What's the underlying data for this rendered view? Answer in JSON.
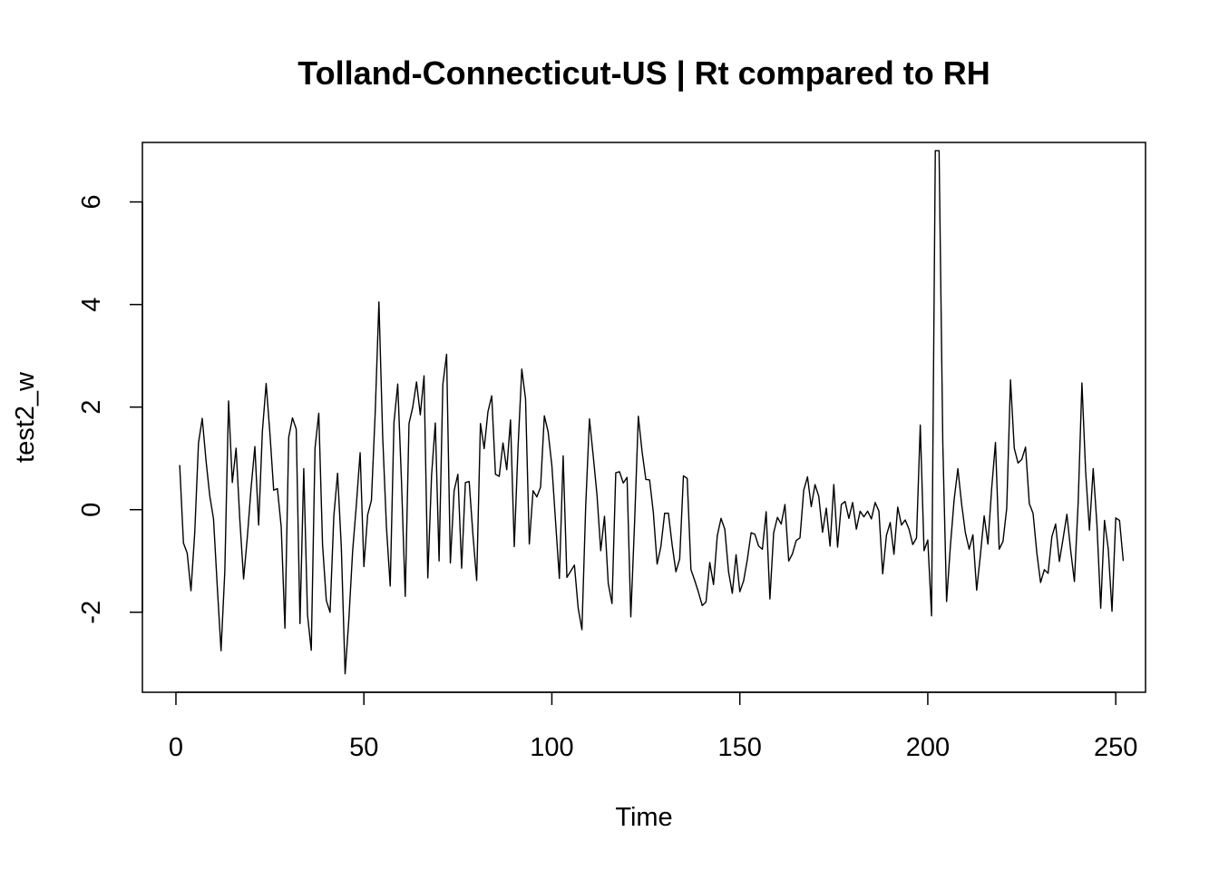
{
  "chart_data": {
    "type": "line",
    "title": "Tolland-Connecticut-US | Rt compared to RH",
    "xlabel": "Time",
    "ylabel": "test2_w",
    "xlim": [
      -8.92,
      257.92
    ],
    "ylim": [
      -3.56,
      7.16
    ],
    "x_ticks": [
      0,
      50,
      100,
      150,
      200,
      250
    ],
    "y_ticks": [
      -2,
      0,
      2,
      4,
      6
    ],
    "grid": false,
    "legend": "none",
    "line_color": "#000000",
    "series": [
      {
        "x_start": 1,
        "values": [
          0.87,
          -0.65,
          -0.85,
          -1.58,
          -0.45,
          1.3,
          1.78,
          0.96,
          0.27,
          -0.18,
          -1.5,
          -2.75,
          -1.21,
          2.12,
          0.53,
          1.2,
          -0.2,
          -1.35,
          -0.53,
          0.43,
          1.23,
          -0.3,
          1.53,
          2.46,
          1.49,
          0.38,
          0.41,
          -0.33,
          -2.31,
          1.41,
          1.79,
          1.57,
          -2.22,
          0.8,
          -2.05,
          -2.74,
          1.2,
          1.88,
          -0.68,
          -1.77,
          -2.0,
          -0.13,
          0.71,
          -0.74,
          -3.2,
          -2.14,
          -0.81,
          0.1,
          1.11,
          -1.11,
          -0.1,
          0.18,
          1.88,
          4.05,
          1.42,
          -0.34,
          -1.49,
          1.7,
          2.45,
          0.55,
          -1.69,
          1.68,
          2.0,
          2.49,
          1.85,
          2.61,
          -1.33,
          0.67,
          1.69,
          -1.0,
          2.44,
          3.03,
          -1.04,
          0.37,
          0.69,
          -1.14,
          0.53,
          0.55,
          -0.48,
          -1.38,
          1.68,
          1.19,
          1.91,
          2.22,
          0.69,
          0.65,
          1.3,
          0.78,
          1.75,
          -0.72,
          1.21,
          2.74,
          2.16,
          -0.67,
          0.37,
          0.25,
          0.44,
          1.83,
          1.52,
          0.86,
          -0.25,
          -1.34,
          1.05,
          -1.32,
          -1.2,
          -1.08,
          -1.92,
          -2.34,
          0.07,
          1.77,
          1.05,
          0.29,
          -0.8,
          -0.13,
          -1.44,
          -1.83,
          0.72,
          0.74,
          0.52,
          0.63,
          -2.09,
          -0.26,
          1.82,
          1.13,
          0.59,
          0.58,
          -0.06,
          -1.06,
          -0.72,
          -0.07,
          -0.07,
          -0.69,
          -1.21,
          -0.96,
          0.66,
          0.61,
          -1.17,
          -1.38,
          -1.61,
          -1.87,
          -1.8,
          -1.03,
          -1.46,
          -0.51,
          -0.17,
          -0.38,
          -1.21,
          -1.63,
          -0.88,
          -1.6,
          -1.39,
          -0.97,
          -0.45,
          -0.48,
          -0.71,
          -0.77,
          -0.04,
          -1.74,
          -0.45,
          -0.15,
          -0.28,
          0.1,
          -1.0,
          -0.86,
          -0.6,
          -0.55,
          0.38,
          0.64,
          0.06,
          0.49,
          0.26,
          -0.44,
          0.03,
          -0.71,
          0.49,
          -0.73,
          0.1,
          0.16,
          -0.17,
          0.14,
          -0.38,
          -0.03,
          -0.14,
          -0.03,
          -0.18,
          0.14,
          -0.03,
          -1.25,
          -0.5,
          -0.25,
          -0.87,
          0.05,
          -0.3,
          -0.2,
          -0.38,
          -0.68,
          -0.55,
          1.65,
          -0.8,
          -0.59,
          -2.07,
          7.0,
          7.0,
          1.27,
          -1.79,
          -0.72,
          0.19,
          0.8,
          0.11,
          -0.45,
          -0.77,
          -0.49,
          -1.57,
          -0.88,
          -0.12,
          -0.67,
          0.42,
          1.31,
          -0.77,
          -0.62,
          0.03,
          2.53,
          1.2,
          0.91,
          0.98,
          1.22,
          0.12,
          -0.07,
          -0.84,
          -1.42,
          -1.17,
          -1.24,
          -0.53,
          -0.28,
          -1.01,
          -0.56,
          -0.09,
          -0.79,
          -1.4,
          0.14,
          2.47,
          0.73,
          -0.4,
          0.8,
          -0.3,
          -1.92,
          -0.21,
          -0.76,
          -1.98,
          -0.16,
          -0.21,
          -1.0
        ]
      }
    ]
  }
}
